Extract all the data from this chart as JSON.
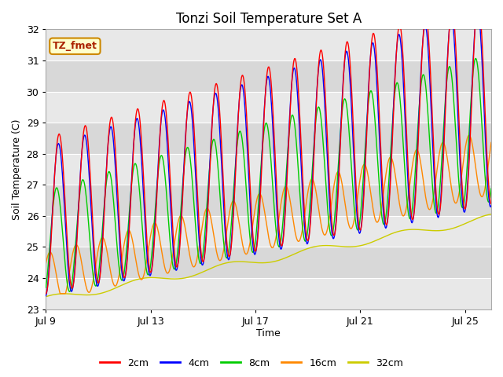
{
  "title": "Tonzi Soil Temperature Set A",
  "xlabel": "Time",
  "ylabel": "Soil Temperature (C)",
  "ylim": [
    23.0,
    32.0
  ],
  "yticks": [
    23.0,
    24.0,
    25.0,
    26.0,
    27.0,
    28.0,
    29.0,
    30.0,
    31.0,
    32.0
  ],
  "xtick_labels": [
    "Jul 9",
    "Jul 13",
    "Jul 17",
    "Jul 21",
    "Jul 25"
  ],
  "xtick_positions": [
    0,
    4,
    8,
    12,
    16
  ],
  "legend_labels": [
    "2cm",
    "4cm",
    "8cm",
    "16cm",
    "32cm"
  ],
  "line_colors": [
    "#ff0000",
    "#0000ff",
    "#00cc00",
    "#ff8800",
    "#cccc00"
  ],
  "annotation_text": "TZ_fmet",
  "annotation_bg": "#ffffcc",
  "annotation_border": "#cc8800",
  "bg_color": "#ffffff",
  "plot_bg_light": "#ebebeb",
  "plot_bg_dark": "#d8d8d8",
  "n_days": 17,
  "band_colors": [
    "#e8e8e8",
    "#d8d8d8"
  ]
}
